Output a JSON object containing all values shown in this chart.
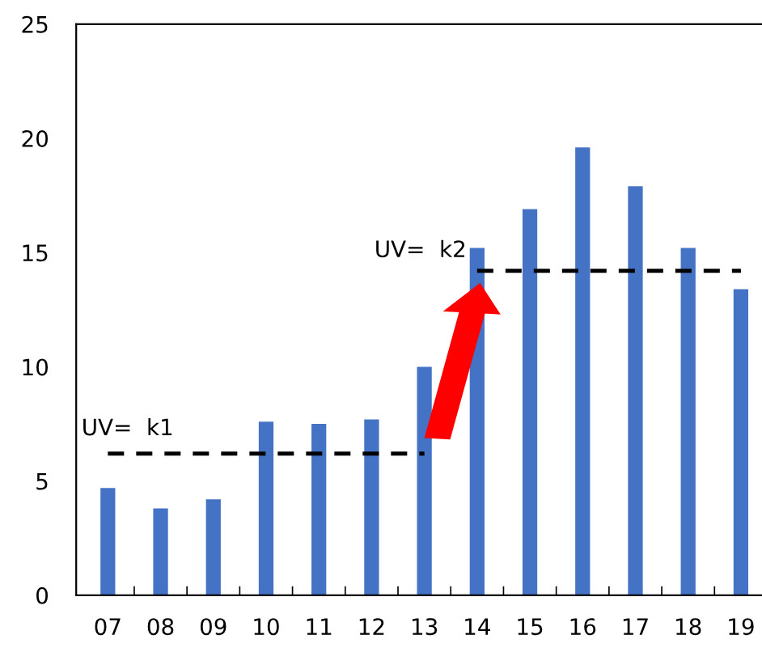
{
  "chart_data": {
    "type": "bar",
    "categories": [
      "07",
      "08",
      "09",
      "10",
      "11",
      "12",
      "13",
      "14",
      "15",
      "16",
      "17",
      "18",
      "19"
    ],
    "series": [
      {
        "color": "#4472c4",
        "values": [
          4.7,
          3.8,
          4.2,
          7.6,
          7.5,
          7.7,
          10.0,
          15.2,
          16.9,
          19.6,
          17.9,
          15.2,
          13.4
        ]
      },
      {
        "type": "line",
        "color": "#000000",
        "line_style": "dashed",
        "values": [
          6.2,
          6.2,
          6.2,
          6.2,
          6.2,
          6.2,
          6.2,
          null,
          null,
          null,
          null,
          null,
          null
        ]
      },
      {
        "type": "line",
        "color": "#000000",
        "line_style": "dashed",
        "values": [
          null,
          null,
          null,
          null,
          null,
          null,
          null,
          14.2,
          14.2,
          14.2,
          14.2,
          14.2,
          14.2
        ]
      }
    ],
    "annotations": [
      {
        "text": "UV=  k1",
        "x": "07",
        "y": 6.2
      },
      {
        "text": "UV=  k2",
        "x": "14",
        "y": 14.2
      }
    ],
    "ylim": [
      0,
      25
    ],
    "yticks": [
      0,
      5,
      10,
      15,
      20,
      25
    ],
    "grid": false,
    "legend": false
  }
}
